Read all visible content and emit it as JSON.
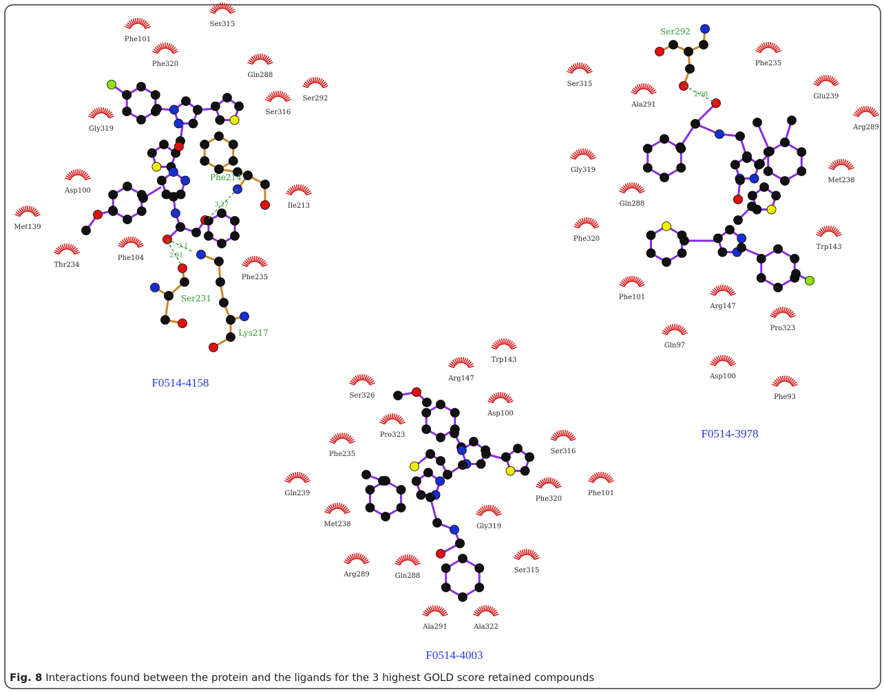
{
  "figure": {
    "panels": [
      {
        "name": "F0514-4158",
        "residues": [
          "Ser315",
          "Phe101",
          "Phe320",
          "Gln288",
          "Ser292",
          "Ser316",
          "Gly319",
          "Asp100",
          "Ile213",
          "Met139",
          "Thr234",
          "Phe104",
          "Phe235"
        ],
        "hbond_residues": [
          "Phe214",
          "Ser231",
          "Lys217"
        ],
        "distances": [
          3.27,
          3.1,
          2.91
        ]
      },
      {
        "name": "F0514-3978",
        "residues": [
          "Phe235",
          "Ser315",
          "Glu239",
          "Ala291",
          "Arg289",
          "Gly319",
          "Met238",
          "Gln288",
          "Phe320",
          "Trp143",
          "Phe101",
          "Arg147",
          "Pro323",
          "Gln97",
          "Asp100",
          "Phe93"
        ],
        "hbond_residues": [
          "Ser292"
        ],
        "distances": [
          2.98
        ]
      },
      {
        "name": "F0514-4003",
        "residues": [
          "Trp143",
          "Arg147",
          "Ser326",
          "Asp100",
          "Pro323",
          "Phe235",
          "Ser316",
          "Gln239",
          "Phe320",
          "Phe101",
          "Met238",
          "Gly319",
          "Arg289",
          "Gln288",
          "Ser315",
          "Ala291",
          "Ala322"
        ],
        "hbond_residues": [],
        "distances": []
      }
    ],
    "caption": {
      "label": "Fig. 8",
      "text": "Interactions found between the protein and the ligands for the 3 highest GOLD score retained compounds"
    }
  }
}
